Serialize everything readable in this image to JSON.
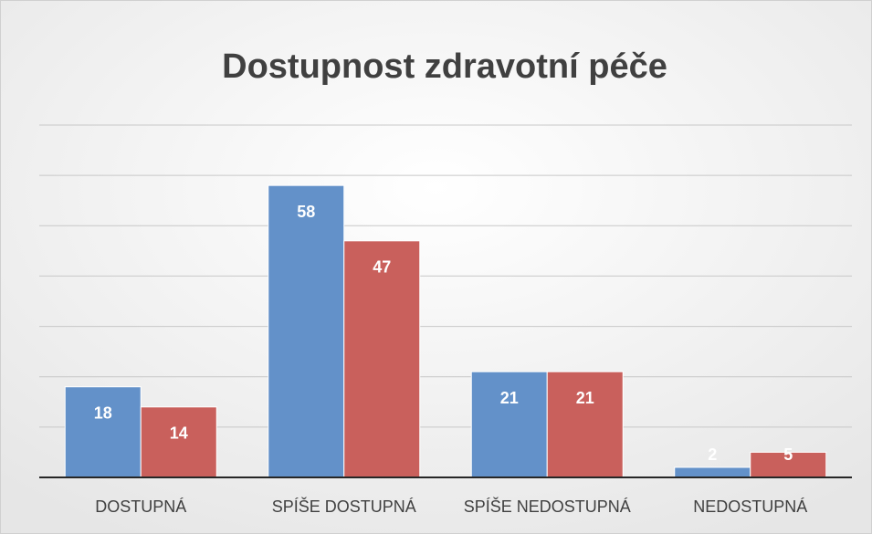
{
  "chart_data": {
    "type": "bar",
    "title": "Dostupnost zdravotní péče",
    "categories": [
      "DOSTUPNÁ",
      "SPÍŠE DOSTUPNÁ",
      "SPÍŠE NEDOSTUPNÁ",
      "NEDOSTUPNÁ"
    ],
    "series": [
      {
        "color": "#6391c9",
        "values": [
          18,
          58,
          21,
          2
        ]
      },
      {
        "color": "#c9605c",
        "values": [
          14,
          47,
          21,
          5
        ]
      }
    ],
    "ylim": [
      0,
      70
    ],
    "yticks": [
      0,
      10,
      20,
      30,
      40,
      50,
      60,
      70
    ],
    "grid": true,
    "data_labels": true
  }
}
